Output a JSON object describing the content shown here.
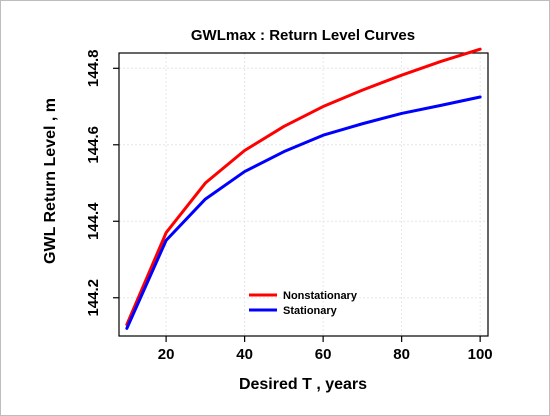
{
  "chart_data": {
    "type": "line",
    "title": "GWLmax : Return Level Curves",
    "xlabel": "Desired T , years",
    "ylabel": "GWL Return Level , m",
    "xlim": [
      8,
      102
    ],
    "ylim": [
      144.1,
      144.84
    ],
    "xticks": [
      20,
      40,
      60,
      80,
      100
    ],
    "yticks": [
      144.2,
      144.4,
      144.6,
      144.8
    ],
    "grid": true,
    "legend_position": "bottom-center",
    "x": [
      10,
      20,
      30,
      40,
      50,
      60,
      70,
      80,
      90,
      100
    ],
    "series": [
      {
        "name": "Nonstationary",
        "color": "#ff0000",
        "values": [
          144.13,
          144.37,
          144.5,
          144.585,
          144.648,
          144.7,
          144.743,
          144.782,
          144.818,
          144.85
        ]
      },
      {
        "name": "Stationary",
        "color": "#0000ff",
        "values": [
          144.12,
          144.35,
          144.458,
          144.53,
          144.582,
          144.625,
          144.655,
          144.682,
          144.703,
          144.725
        ]
      }
    ]
  }
}
